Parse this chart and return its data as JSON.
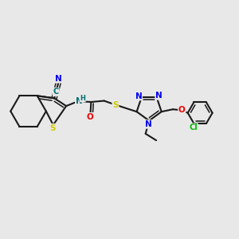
{
  "bg_color": "#e8e8e8",
  "bond_color": "#1a1a1a",
  "bond_lw": 1.5,
  "atom_colors": {
    "N": "#0000ee",
    "S": "#cccc00",
    "O": "#ee0000",
    "Cl": "#00bb00",
    "C": "#007070",
    "H": "#007070",
    "default": "#1a1a1a"
  },
  "figsize": [
    3.0,
    3.0
  ],
  "dpi": 100
}
